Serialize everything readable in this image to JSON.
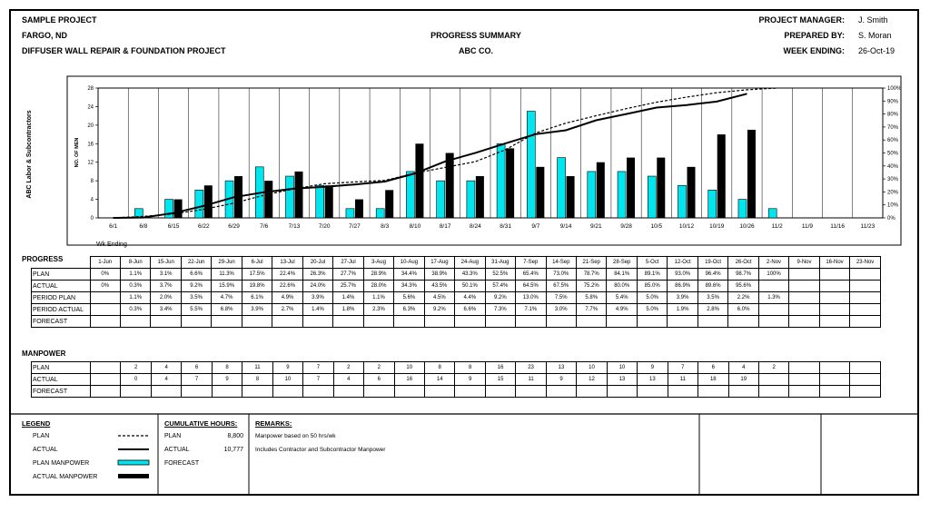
{
  "header": {
    "project": "SAMPLE PROJECT",
    "location": "FARGO, ND",
    "project_name": "DIFFUSER WALL REPAIR & FOUNDATION PROJECT",
    "title": "PROGRESS SUMMARY",
    "company": "ABC CO.",
    "manager_label": "PROJECT MANAGER:",
    "manager": "J. Smith",
    "prepared_label": "PREPARED BY:",
    "prepared": "S. Moran",
    "week_label": "WEEK ENDING:",
    "week": "26-Oct-19"
  },
  "chart_data": {
    "type": "bar",
    "ylabel": "NO. OF MEN",
    "side_label": "ABC Labor & Subcontractors",
    "categories": [
      "6/1",
      "6/8",
      "6/15",
      "6/22",
      "6/29",
      "7/6",
      "7/13",
      "7/20",
      "7/27",
      "8/3",
      "8/10",
      "8/17",
      "8/24",
      "8/31",
      "9/7",
      "9/14",
      "9/21",
      "9/28",
      "10/5",
      "10/12",
      "10/19",
      "10/26",
      "11/2",
      "11/9",
      "11/16",
      "11/23"
    ],
    "ylim": [
      0,
      28
    ],
    "yticks": [
      0,
      4,
      8,
      12,
      16,
      20,
      24,
      28
    ],
    "y2lim": [
      0,
      100
    ],
    "y2ticks": [
      "0%",
      "10%",
      "20%",
      "30%",
      "40%",
      "50%",
      "60%",
      "70%",
      "80%",
      "90%",
      "100%"
    ],
    "series": [
      {
        "name": "PLAN MANPOWER",
        "type": "bar",
        "color": "#00e5ee",
        "values": [
          null,
          2,
          4,
          6,
          8,
          11,
          9,
          7,
          2,
          2,
          10,
          8,
          8,
          16,
          23,
          13,
          10,
          10,
          9,
          7,
          6,
          4,
          2,
          null,
          null,
          null
        ]
      },
      {
        "name": "ACTUAL MANPOWER",
        "type": "bar",
        "color": "#000000",
        "values": [
          null,
          0,
          4,
          7,
          9,
          8,
          10,
          7,
          4,
          6,
          16,
          14,
          9,
          15,
          11,
          9,
          12,
          13,
          13,
          11,
          18,
          19,
          null,
          null,
          null,
          null
        ]
      },
      {
        "name": "PLAN",
        "type": "line",
        "axis": "right",
        "dash": true,
        "values": [
          0,
          1.1,
          3.1,
          6.6,
          11.3,
          17.5,
          22.4,
          26.3,
          27.7,
          28.9,
          34.4,
          38.9,
          43.3,
          52.5,
          65.4,
          73.0,
          78.7,
          84.1,
          89.1,
          93.0,
          96.4,
          98.7,
          100,
          null,
          null,
          null
        ]
      },
      {
        "name": "ACTUAL",
        "type": "line",
        "axis": "right",
        "dash": false,
        "values": [
          0,
          0.3,
          3.7,
          9.2,
          15.9,
          19.8,
          22.6,
          24.0,
          25.7,
          28.0,
          34.3,
          43.5,
          50.1,
          57.4,
          64.5,
          67.5,
          75.2,
          80.0,
          85.0,
          86.9,
          89.6,
          95.6,
          null,
          null,
          null,
          null
        ]
      }
    ]
  },
  "progress": {
    "title": "PROGRESS",
    "wk_label": "Wk Ending",
    "dates": [
      "1-Jun",
      "8-Jun",
      "15-Jun",
      "22-Jun",
      "29-Jun",
      "6-Jul",
      "13-Jul",
      "20-Jul",
      "27-Jul",
      "3-Aug",
      "10-Aug",
      "17-Aug",
      "24-Aug",
      "31-Aug",
      "7-Sep",
      "14-Sep",
      "21-Sep",
      "28-Sep",
      "5-Oct",
      "12-Oct",
      "19-Oct",
      "26-Oct",
      "2-Nov",
      "9-Nov",
      "16-Nov",
      "23-Nov"
    ],
    "rows": [
      {
        "label": "PLAN",
        "values": [
          "0%",
          "1.1%",
          "3.1%",
          "6.6%",
          "11.3%",
          "17.5%",
          "22.4%",
          "26.3%",
          "27.7%",
          "28.9%",
          "34.4%",
          "38.9%",
          "43.3%",
          "52.5%",
          "65.4%",
          "73.0%",
          "78.7%",
          "84.1%",
          "89.1%",
          "93.0%",
          "96.4%",
          "98.7%",
          "100%",
          "",
          "",
          ""
        ]
      },
      {
        "label": "ACTUAL",
        "values": [
          "0%",
          "0.3%",
          "3.7%",
          "9.2%",
          "15.9%",
          "19.8%",
          "22.6%",
          "24.0%",
          "25.7%",
          "28.0%",
          "34.3%",
          "43.5%",
          "50.1%",
          "57.4%",
          "64.5%",
          "67.5%",
          "75.2%",
          "80.0%",
          "85.0%",
          "86.9%",
          "89.6%",
          "95.6%",
          "",
          "",
          "",
          ""
        ]
      },
      {
        "label": "PERIOD PLAN",
        "values": [
          "",
          "1.1%",
          "2.0%",
          "3.5%",
          "4.7%",
          "6.1%",
          "4.9%",
          "3.9%",
          "1.4%",
          "1.1%",
          "5.6%",
          "4.5%",
          "4.4%",
          "9.2%",
          "13.0%",
          "7.5%",
          "5.8%",
          "5.4%",
          "5.0%",
          "3.9%",
          "3.5%",
          "2.2%",
          "1.3%",
          "",
          "",
          ""
        ]
      },
      {
        "label": "PERIOD ACTUAL",
        "values": [
          "",
          "0.3%",
          "3.4%",
          "5.5%",
          "6.8%",
          "3.9%",
          "2.7%",
          "1.4%",
          "1.8%",
          "2.3%",
          "6.3%",
          "9.2%",
          "6.6%",
          "7.3%",
          "7.1%",
          "3.0%",
          "7.7%",
          "4.9%",
          "5.0%",
          "1.9%",
          "2.8%",
          "6.0%",
          "",
          "",
          "",
          ""
        ]
      },
      {
        "label": "FORECAST",
        "values": [
          "",
          "",
          "",
          "",
          "",
          "",
          "",
          "",
          "",
          "",
          "",
          "",
          "",
          "",
          "",
          "",
          "",
          "",
          "",
          "",
          "",
          "",
          "",
          "",
          "",
          ""
        ]
      }
    ]
  },
  "manpower": {
    "title": "MANPOWER",
    "rows": [
      {
        "label": "PLAN",
        "values": [
          "",
          "2",
          "4",
          "6",
          "8",
          "11",
          "9",
          "7",
          "2",
          "2",
          "10",
          "8",
          "8",
          "16",
          "23",
          "13",
          "10",
          "10",
          "9",
          "7",
          "6",
          "4",
          "2",
          "",
          "",
          ""
        ]
      },
      {
        "label": "ACTUAL",
        "values": [
          "",
          "0",
          "4",
          "7",
          "9",
          "8",
          "10",
          "7",
          "4",
          "6",
          "16",
          "14",
          "9",
          "15",
          "11",
          "9",
          "12",
          "13",
          "13",
          "11",
          "18",
          "19",
          "",
          "",
          "",
          ""
        ]
      },
      {
        "label": "FORECAST",
        "values": [
          "",
          "",
          "",
          "",
          "",
          "",
          "",
          "",
          "",
          "",
          "",
          "",
          "",
          "",
          "",
          "",
          "",
          "",
          "",
          "",
          "",
          "",
          "",
          "",
          "",
          ""
        ]
      }
    ]
  },
  "legend": {
    "title": "LEGEND",
    "items": [
      "PLAN",
      "ACTUAL",
      "PLAN MANPOWER",
      "ACTUAL MANPOWER"
    ]
  },
  "cumulative": {
    "title": "CUMULATIVE HOURS:",
    "plan_label": "PLAN",
    "plan": "8,800",
    "actual_label": "ACTUAL",
    "actual": "10,777",
    "forecast_label": "FORECAST"
  },
  "remarks": {
    "title": "REMARKS:",
    "lines": [
      "Manpower based on 50 hrs/wk",
      "Includes Contractor and Subcontractor Manpower"
    ]
  }
}
